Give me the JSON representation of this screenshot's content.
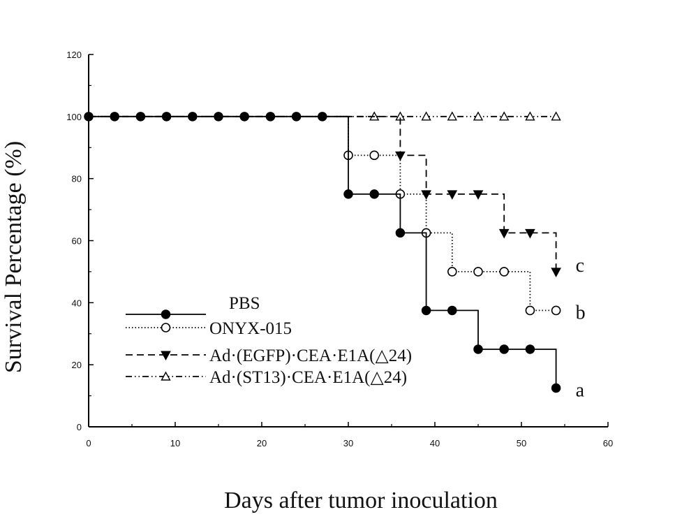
{
  "chart_data": {
    "type": "line",
    "title": "",
    "xlabel": "Days after tumor inoculation",
    "ylabel": "Survival Percentage (%)",
    "xlim": [
      0,
      60
    ],
    "ylim": [
      0,
      120
    ],
    "xticks": [
      0,
      10,
      20,
      30,
      40,
      50,
      60
    ],
    "yticks": [
      0,
      20,
      40,
      60,
      80,
      100,
      120
    ],
    "grid": false,
    "legend_position": "lower-left",
    "series": [
      {
        "name": "PBS",
        "line_style": "solid",
        "marker": "filled-circle",
        "color": "#000000",
        "end_label": "a",
        "points": [
          [
            0,
            100
          ],
          [
            3,
            100
          ],
          [
            6,
            100
          ],
          [
            9,
            100
          ],
          [
            12,
            100
          ],
          [
            15,
            100
          ],
          [
            18,
            100
          ],
          [
            21,
            100
          ],
          [
            24,
            100
          ],
          [
            27,
            100
          ],
          [
            30,
            100
          ],
          [
            30,
            75
          ],
          [
            33,
            75
          ],
          [
            36,
            75
          ],
          [
            36,
            62.5
          ],
          [
            39,
            62.5
          ],
          [
            39,
            37.5
          ],
          [
            42,
            37.5
          ],
          [
            45,
            37.5
          ],
          [
            45,
            25
          ],
          [
            48,
            25
          ],
          [
            51,
            25
          ],
          [
            54,
            25
          ],
          [
            54,
            12.5
          ]
        ],
        "marker_points": [
          [
            0,
            100
          ],
          [
            3,
            100
          ],
          [
            6,
            100
          ],
          [
            9,
            100
          ],
          [
            12,
            100
          ],
          [
            15,
            100
          ],
          [
            18,
            100
          ],
          [
            21,
            100
          ],
          [
            24,
            100
          ],
          [
            27,
            100
          ],
          [
            30,
            75
          ],
          [
            33,
            75
          ],
          [
            36,
            62.5
          ],
          [
            39,
            37.5
          ],
          [
            42,
            37.5
          ],
          [
            45,
            25
          ],
          [
            48,
            25
          ],
          [
            51,
            25
          ],
          [
            54,
            12.5
          ]
        ]
      },
      {
        "name": "ONYX-015",
        "line_style": "dotted",
        "marker": "open-circle",
        "color": "#000000",
        "end_label": "b",
        "points": [
          [
            0,
            100
          ],
          [
            30,
            100
          ],
          [
            30,
            87.5
          ],
          [
            33,
            87.5
          ],
          [
            36,
            87.5
          ],
          [
            36,
            75
          ],
          [
            39,
            75
          ],
          [
            39,
            62.5
          ],
          [
            42,
            62.5
          ],
          [
            42,
            50
          ],
          [
            45,
            50
          ],
          [
            48,
            50
          ],
          [
            51,
            50
          ],
          [
            51,
            37.5
          ],
          [
            54,
            37.5
          ]
        ],
        "marker_points": [
          [
            30,
            87.5
          ],
          [
            33,
            87.5
          ],
          [
            36,
            75
          ],
          [
            39,
            62.5
          ],
          [
            42,
            50
          ],
          [
            45,
            50
          ],
          [
            48,
            50
          ],
          [
            51,
            37.5
          ],
          [
            54,
            37.5
          ]
        ]
      },
      {
        "name": "Ad·(EGFP)·CEA·E1A(△24)",
        "line_style": "dashed",
        "marker": "filled-down-triangle",
        "color": "#000000",
        "end_label": "c",
        "points": [
          [
            0,
            100
          ],
          [
            36,
            100
          ],
          [
            36,
            87.5
          ],
          [
            39,
            87.5
          ],
          [
            39,
            75
          ],
          [
            42,
            75
          ],
          [
            45,
            75
          ],
          [
            48,
            75
          ],
          [
            48,
            62.5
          ],
          [
            51,
            62.5
          ],
          [
            54,
            62.5
          ],
          [
            54,
            50
          ]
        ],
        "marker_points": [
          [
            36,
            87.5
          ],
          [
            39,
            75
          ],
          [
            42,
            75
          ],
          [
            45,
            75
          ],
          [
            48,
            62.5
          ],
          [
            51,
            62.5
          ],
          [
            54,
            50
          ]
        ]
      },
      {
        "name": "Ad·(ST13)·CEA·E1A(△24)",
        "line_style": "dash-dot-dot",
        "marker": "open-up-triangle",
        "color": "#000000",
        "end_label": "",
        "points": [
          [
            0,
            100
          ],
          [
            54,
            100
          ]
        ],
        "marker_points": [
          [
            33,
            100
          ],
          [
            36,
            100
          ],
          [
            39,
            100
          ],
          [
            42,
            100
          ],
          [
            45,
            100
          ],
          [
            48,
            100
          ],
          [
            51,
            100
          ],
          [
            54,
            100
          ]
        ]
      }
    ]
  }
}
